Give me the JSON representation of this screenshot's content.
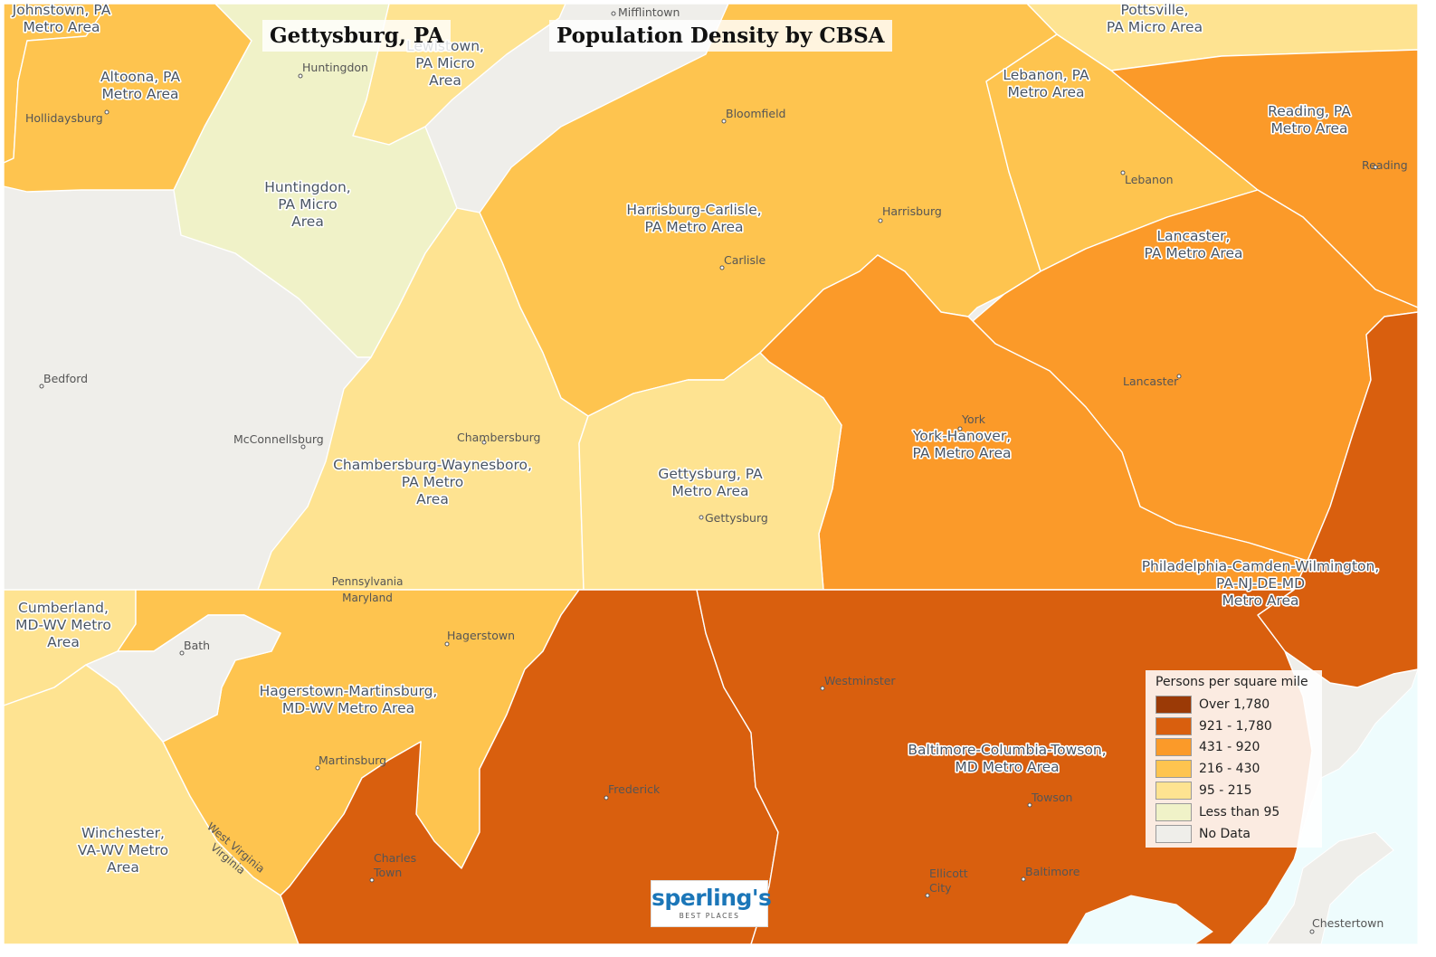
{
  "title": {
    "place": "Gettysburg, PA",
    "main": "Population Density by CBSA"
  },
  "legend": {
    "title": "Persons per square mile",
    "classes": [
      {
        "label": "Over 1,780",
        "color": "#9b3a06"
      },
      {
        "label": "921 - 1,780",
        "color": "#d95f0e"
      },
      {
        "label": "431 - 920",
        "color": "#fb9a29"
      },
      {
        "label": "216 - 430",
        "color": "#fec44f"
      },
      {
        "label": "95 - 215",
        "color": "#fee391"
      },
      {
        "label": "Less than 95",
        "color": "#f0f2c8"
      },
      {
        "label": "No Data",
        "color": "#efeeea"
      }
    ]
  },
  "regions": [
    {
      "key": "background",
      "class": "No Data"
    },
    {
      "key": "johnstown",
      "class": "216 - 430"
    },
    {
      "key": "altoona",
      "class": "216 - 430"
    },
    {
      "key": "lewistown",
      "class": "95 - 215"
    },
    {
      "key": "pottsville",
      "class": "95 - 215"
    },
    {
      "key": "huntingdon",
      "class": "Less than 95"
    },
    {
      "key": "harrisburg",
      "class": "216 - 430"
    },
    {
      "key": "lebanon",
      "class": "216 - 430"
    },
    {
      "key": "reading",
      "class": "431 - 920"
    },
    {
      "key": "lancaster",
      "class": "431 - 920"
    },
    {
      "key": "york",
      "class": "431 - 920"
    },
    {
      "key": "philadelphia",
      "class": "921 - 1,780"
    },
    {
      "key": "chambersburg",
      "class": "95 - 215"
    },
    {
      "key": "gettysburg",
      "class": "95 - 215"
    },
    {
      "key": "cumberland",
      "class": "95 - 215"
    },
    {
      "key": "winchester",
      "class": "95 - 215"
    },
    {
      "key": "hagerstown",
      "class": "216 - 430"
    },
    {
      "key": "baltimore",
      "class": "921 - 1,780"
    },
    {
      "key": "washington",
      "class": "921 - 1,780"
    }
  ],
  "metro_labels": {
    "johnstown": [
      "Johnstown, PA",
      "Metro Area"
    ],
    "altoona": [
      "Altoona, PA",
      "Metro Area"
    ],
    "lewistown": [
      "Lewistown,",
      "PA Micro",
      "Area"
    ],
    "pottsville": [
      "Pottsville,",
      "PA Micro Area"
    ],
    "huntingdon": [
      "Huntingdon,",
      "PA Micro",
      "Area"
    ],
    "harrisburg": [
      "Harrisburg-Carlisle,",
      "PA Metro Area"
    ],
    "lebanon": [
      "Lebanon, PA",
      "Metro Area"
    ],
    "reading": [
      "Reading, PA",
      "Metro Area"
    ],
    "lancaster": [
      "Lancaster,",
      "PA Metro Area"
    ],
    "york": [
      "York-Hanover,",
      "PA Metro Area"
    ],
    "philadelphia": [
      "Philadelphia-Camden-Wilmington,",
      "PA-NJ-DE-MD",
      "Metro Area"
    ],
    "chambersburg": [
      "Chambersburg-Waynesboro,",
      "PA Metro",
      "Area"
    ],
    "gettysburg": [
      "Gettysburg, PA",
      "Metro Area"
    ],
    "cumberland": [
      "Cumberland,",
      "MD-WV Metro",
      "Area"
    ],
    "hagerstown": [
      "Hagerstown-Martinsburg,",
      "MD-WV Metro Area"
    ],
    "winchester": [
      "Winchester,",
      "VA-WV Metro",
      "Area"
    ],
    "baltimore": [
      "Baltimore-Columbia-Towson,",
      "MD Metro Area"
    ]
  },
  "cities": {
    "mifflintown": "Mifflintown",
    "huntingdon": "Huntingdon",
    "hollidaysburg": "Hollidaysburg",
    "bloomfield": "Bloomfield",
    "lebanon": "Lebanon",
    "reading": "Reading",
    "harrisburg": "Harrisburg",
    "carlisle": "Carlisle",
    "bedford": "Bedford",
    "lancaster": "Lancaster",
    "york": "York",
    "chambersburg": "Chambersburg",
    "mcconnellsburg": "McConnellsburg",
    "gettysburg": "Gettysburg",
    "bath": "Bath",
    "hagerstown": "Hagerstown",
    "westminster": "Westminster",
    "martinsburg": "Martinsburg",
    "frederick": "Frederick",
    "towson": "Towson",
    "charles_town": [
      "Charles",
      "Town"
    ],
    "ellicott_city": [
      "Ellicott",
      "City"
    ],
    "baltimore": "Baltimore",
    "chestertown": "Chestertown"
  },
  "borders": {
    "pa": "Pennsylvania",
    "md": "Maryland",
    "wv": "West Virginia",
    "va": "Virginia"
  },
  "logo": {
    "brand": "sperling's",
    "sub": "BEST PLACES"
  }
}
